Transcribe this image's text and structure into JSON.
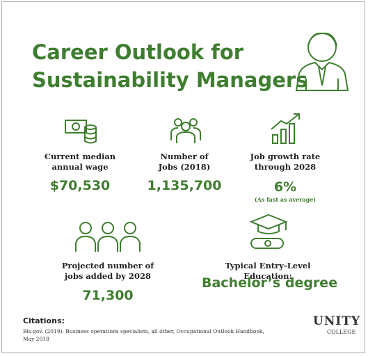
{
  "title_lines": [
    "Career Outlook for",
    "Sustainability Managers"
  ],
  "stats": [
    {
      "label": "Current median annual wage",
      "value": "$70,530"
    },
    {
      "label": "Number of Jobs (2018)",
      "value": "1,135,700"
    },
    {
      "label": "Job growth rate through 2028",
      "value": "6%",
      "note": "(As fast as average)"
    },
    {
      "label": "Projected number of jobs added by 2028",
      "value": "71,300"
    },
    {
      "label": "Typical Entry-Level Education:",
      "value": "Bachelor’s degree"
    }
  ],
  "citations": {
    "heading": "Citations:",
    "text": "Bls.gov. (2019). Business operations specialists, all other, Occupational Outlook Handbook, May 2018"
  },
  "logo": {
    "name": "UNITY",
    "sub": "COLLEGE"
  }
}
